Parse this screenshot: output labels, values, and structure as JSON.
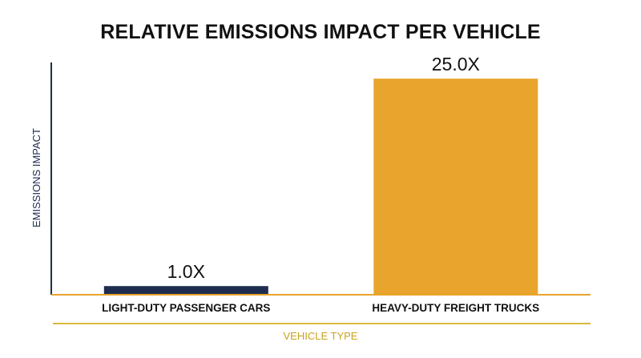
{
  "chart_data": {
    "type": "bar",
    "title": "RELATIVE EMISSIONS IMPACT PER VEHICLE",
    "xlabel": "VEHICLE TYPE",
    "ylabel": "EMISSIONS IMPACT",
    "categories": [
      "LIGHT-DUTY PASSENGER CARS",
      "HEAVY-DUTY FREIGHT TRUCKS"
    ],
    "values": [
      1.0,
      25.0
    ],
    "value_labels": [
      "1.0X",
      "25.0X"
    ],
    "bar_colors": [
      "#1e2d4f",
      "#e8a42c"
    ],
    "ylim": [
      0,
      26.5
    ],
    "grid": false,
    "colors": {
      "axis": "#1e2d4f",
      "baseline": "#e8a42c",
      "xlabel_rule": "#d9b93a",
      "xlabel_text": "#c9a21e"
    }
  }
}
